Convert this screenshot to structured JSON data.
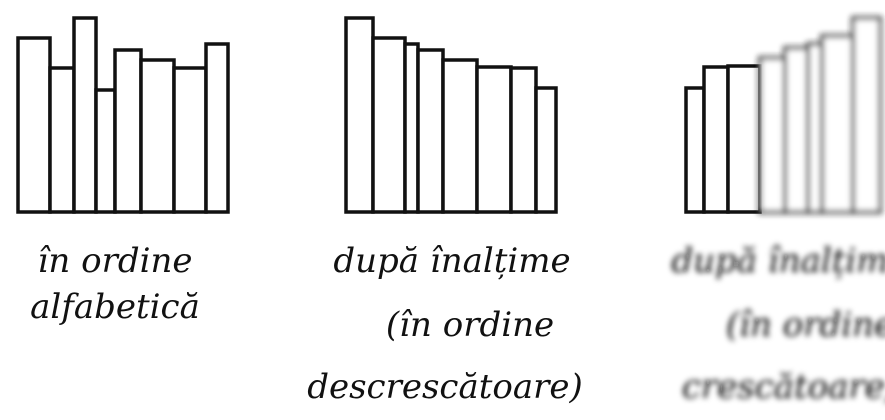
{
  "groups": [
    {
      "caption": [
        "în ordine",
        "alfabetică"
      ]
    },
    {
      "caption": [
        "după înalțime",
        "(în ordine",
        "descrescătoare)"
      ]
    },
    {
      "caption": [
        "după înalțime",
        "(în ordine",
        "crescătoare)"
      ]
    }
  ]
}
